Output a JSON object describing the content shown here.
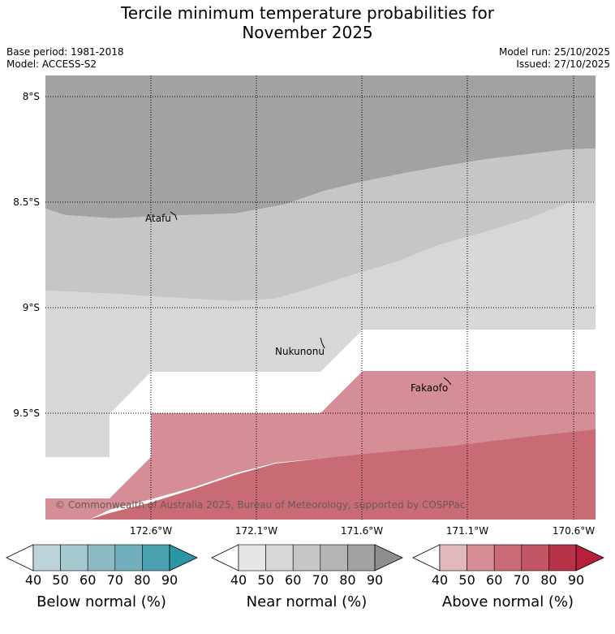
{
  "title": {
    "line1": "Tercile minimum temperature probabilities for",
    "line2": "November 2025"
  },
  "meta": {
    "base_period": "Base period: 1981-2018",
    "model": "Model: ACCESS-S2",
    "model_run": "Model run: 25/10/2025",
    "issued": "Issued: 27/10/2025"
  },
  "map": {
    "lat_ticks": [
      "8°S",
      "8.5°S",
      "9°S",
      "9.5°S"
    ],
    "lon_ticks": [
      "172.6°W",
      "172.1°W",
      "171.6°W",
      "171.1°W",
      "170.6°W"
    ],
    "places": [
      {
        "name": "Atafu",
        "lat": -8.58,
        "lon": -172.48
      },
      {
        "name": "Nukunonu",
        "lat": -9.17,
        "lon": -171.83
      },
      {
        "name": "Fakaofo",
        "lat": -9.37,
        "lon": -171.23
      }
    ],
    "copyright": "© Commonwealth of Australia 2025, Bureau of Meteorology, supported by COSPPac"
  },
  "legends": [
    {
      "label": "Below normal (%)",
      "ticks": [
        "40",
        "50",
        "60",
        "70",
        "80",
        "90"
      ],
      "colors": [
        "#ffffff",
        "#bcd3da",
        "#a5c7ce",
        "#8cbbc5",
        "#72afbc",
        "#4ba1b0",
        "#2a95a5"
      ]
    },
    {
      "label": "Near normal (%)",
      "ticks": [
        "40",
        "50",
        "60",
        "70",
        "80",
        "90"
      ],
      "colors": [
        "#ffffff",
        "#e6e6e6",
        "#d7d7d7",
        "#c6c6c6",
        "#b4b4b4",
        "#a2a2a2",
        "#8e8e8e"
      ]
    },
    {
      "label": "Above normal (%)",
      "ticks": [
        "40",
        "50",
        "60",
        "70",
        "80",
        "90"
      ],
      "colors": [
        "#ffffff",
        "#e3b8bd",
        "#d78f96",
        "#ca6b75",
        "#c25665",
        "#b83347",
        "#b5213b"
      ]
    }
  ],
  "colors": {
    "near_80": "#a2a2a2",
    "near_60": "#c6c6c6",
    "near_50": "#d7d7d7",
    "above_50": "#d58e96",
    "above_60": "#c96b75"
  }
}
